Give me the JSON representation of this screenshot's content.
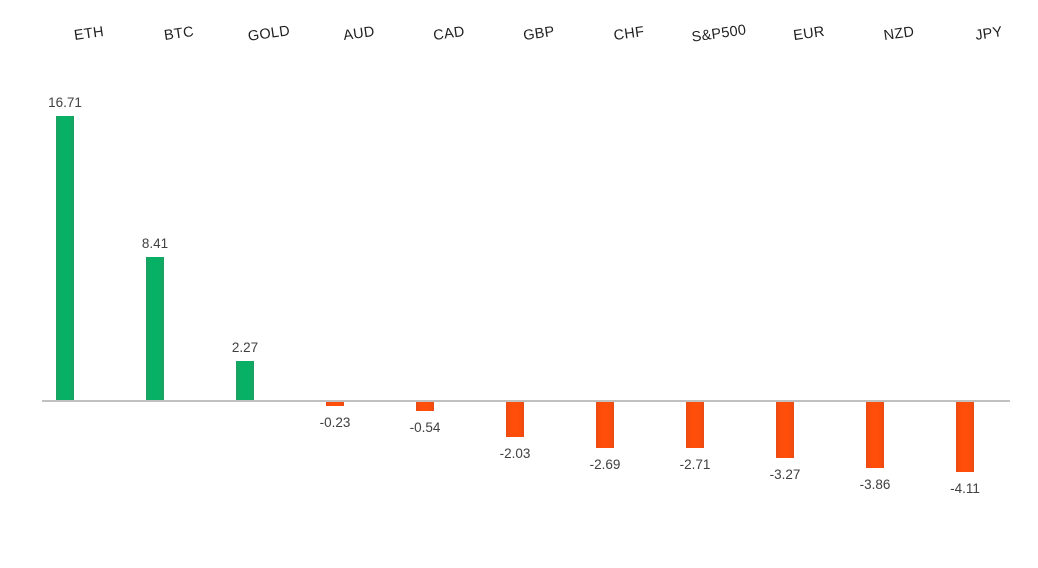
{
  "chart_data": {
    "type": "bar",
    "title": "",
    "xlabel": "",
    "ylabel": "",
    "categories": [
      "ETH",
      "BTC",
      "GOLD",
      "AUD",
      "CAD",
      "GBP",
      "CHF",
      "S&P500",
      "EUR",
      "NZD",
      "JPY"
    ],
    "values": [
      16.71,
      8.41,
      2.27,
      -0.23,
      -0.54,
      -2.03,
      -2.69,
      -2.71,
      -3.27,
      -3.86,
      -4.11
    ],
    "value_labels": [
      "16.71",
      "8.41",
      "2.27",
      "-0.23",
      "-0.54",
      "-2.03",
      "-2.69",
      "-2.71",
      "-3.27",
      "-3.86",
      "-4.11"
    ],
    "ylim": [
      -5,
      17
    ],
    "grid": false,
    "legend": false,
    "axis_labels_position": "top",
    "colors": {
      "positive_bar": "#06b166",
      "positive_bar_edge": "#1ba061",
      "negative_bar": "#ff4d0a",
      "negative_bar_edge": "#ea4a12",
      "zero_axis": "#c0c0c0",
      "category_label": "#1f1f1f",
      "value_label": "#404040"
    }
  }
}
